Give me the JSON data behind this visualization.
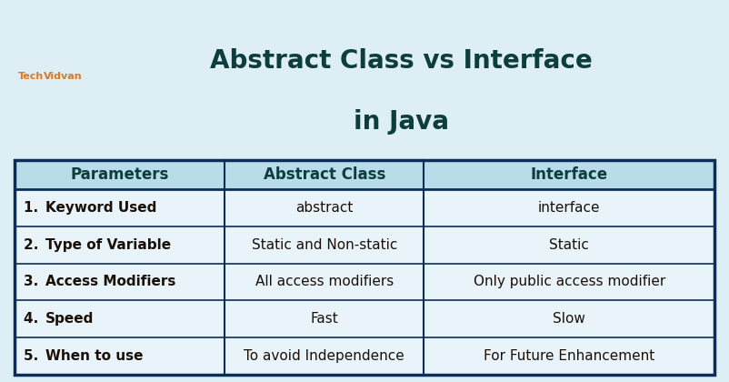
{
  "title_line1": "Abstract Class vs Interface",
  "title_line2": "in Java",
  "title_color": "#0d3d3d",
  "title_fontsize": 20,
  "bg_color": "#ddeef5",
  "header_bg": "#b8dde8",
  "data_row_bg": "#e8f4fa",
  "border_color": "#0a2d5a",
  "header_texts": [
    "Parameters",
    "Abstract Class",
    "Interface"
  ],
  "header_fontsize": 12,
  "header_color": "#0d3d3d",
  "rows": [
    [
      "1.   Keyword Used",
      "abstract",
      "interface"
    ],
    [
      "2.   Type of Variable",
      "Static and Non-static",
      "Static"
    ],
    [
      "3.   Access Modifiers",
      "All access modifiers",
      "Only public access modifier"
    ],
    [
      "4.   Speed",
      "Fast",
      "Slow"
    ],
    [
      "5.   When to use",
      "To avoid Independence",
      "For Future Enhancement"
    ]
  ],
  "row_label_fontsize": 11,
  "row_value_fontsize": 11,
  "row_label_color": "#1a1008",
  "row_value_color": "#1a1008",
  "techvidvan_logo_color": "#e07820",
  "techvidvan_text": "TechVidvan",
  "col_boundaries": [
    0.0,
    0.3,
    0.585,
    1.0
  ]
}
